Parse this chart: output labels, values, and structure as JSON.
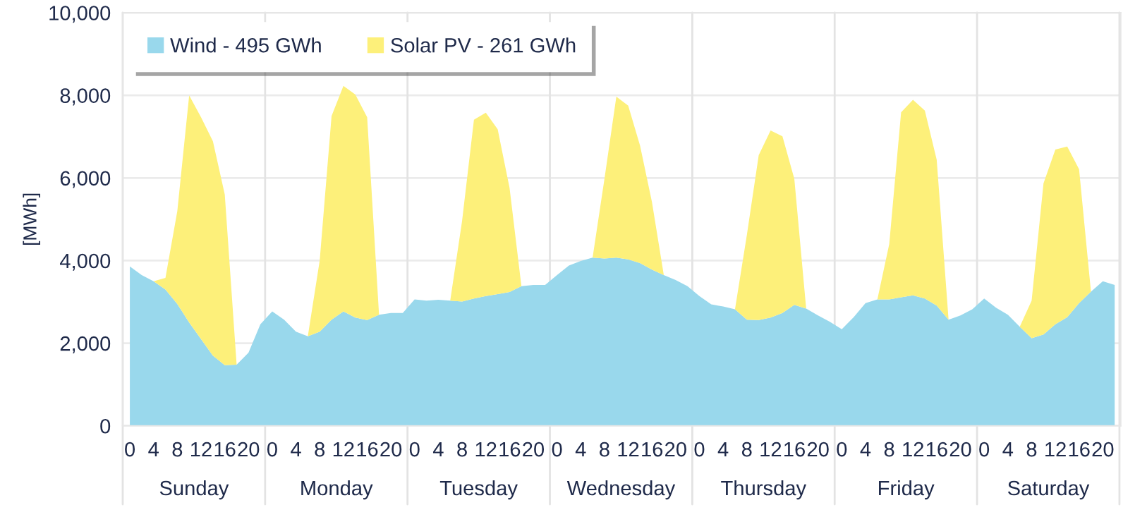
{
  "chart_data": {
    "type": "area",
    "stacked": true,
    "ylabel": "[MWh]",
    "categories": [
      "0",
      null,
      "4",
      null,
      "8",
      null,
      "12",
      null,
      "16",
      null,
      "20",
      null,
      "0",
      null,
      "4",
      null,
      "8",
      null,
      "12",
      null,
      "16",
      null,
      "20",
      null,
      "0",
      null,
      "4",
      null,
      "8",
      null,
      "12",
      null,
      "16",
      null,
      "20",
      null,
      "0",
      null,
      "4",
      null,
      "8",
      null,
      "12",
      null,
      "16",
      null,
      "20",
      null,
      "0",
      null,
      "4",
      null,
      "8",
      null,
      "12",
      null,
      "16",
      null,
      "20",
      null,
      "0",
      null,
      "4",
      null,
      "8",
      null,
      "12",
      null,
      "16",
      null,
      "20",
      null,
      "0",
      null,
      "4",
      null,
      "8",
      null,
      "12",
      null,
      "16",
      null,
      "20",
      null
    ],
    "annotations": [
      "Sunday",
      "Monday",
      "Tuesday",
      "Wednesday",
      "Thursday",
      "Friday",
      "Saturday"
    ],
    "series": [
      {
        "name": "Wind - 495 GWh",
        "color": "#99d8ec",
        "values": [
          3860,
          3650,
          3500,
          3300,
          2950,
          2500,
          2100,
          1700,
          1470,
          1480,
          1770,
          2460,
          2770,
          2570,
          2280,
          2170,
          2280,
          2570,
          2770,
          2620,
          2560,
          2690,
          2730,
          2730,
          3060,
          3030,
          3050,
          3030,
          3010,
          3080,
          3140,
          3190,
          3240,
          3380,
          3410,
          3410,
          3650,
          3880,
          3990,
          4070,
          4050,
          4070,
          4030,
          3940,
          3780,
          3650,
          3530,
          3380,
          3140,
          2940,
          2890,
          2820,
          2570,
          2560,
          2620,
          2730,
          2930,
          2840,
          2670,
          2520,
          2340,
          2630,
          2970,
          3060,
          3060,
          3110,
          3160,
          3080,
          2910,
          2570,
          2670,
          2820,
          3080,
          2860,
          2690,
          2400,
          2120,
          2210,
          2460,
          2630,
          2970,
          3250,
          3500,
          3410
        ]
      },
      {
        "name": "Solar PV - 261 GWh",
        "color": "#fdf07a",
        "values": [
          0,
          0,
          0,
          280,
          2250,
          5500,
          5370,
          5190,
          4130,
          0,
          0,
          0,
          0,
          0,
          0,
          0,
          1720,
          4930,
          5460,
          5400,
          4910,
          0,
          0,
          0,
          0,
          0,
          0,
          0,
          1950,
          4330,
          4440,
          3990,
          2520,
          0,
          0,
          0,
          0,
          0,
          0,
          0,
          1930,
          3900,
          3720,
          2840,
          1640,
          0,
          0,
          0,
          0,
          0,
          0,
          0,
          2050,
          3990,
          4530,
          4280,
          3050,
          0,
          0,
          0,
          0,
          0,
          0,
          0,
          1340,
          4480,
          4730,
          4550,
          3530,
          0,
          0,
          0,
          0,
          0,
          0,
          0,
          910,
          3660,
          4230,
          4130,
          3240,
          0,
          0,
          0
        ]
      }
    ],
    "ylim": [
      0,
      10000
    ],
    "yticks": [
      {
        "value": 0,
        "label": "0"
      },
      {
        "value": 2000,
        "label": "2,000"
      },
      {
        "value": 4000,
        "label": "4,000"
      },
      {
        "value": 6000,
        "label": "6,000"
      },
      {
        "value": 8000,
        "label": "8,000"
      },
      {
        "value": 10000,
        "label": "10,000"
      }
    ],
    "grid": "y",
    "legend": "top left"
  }
}
